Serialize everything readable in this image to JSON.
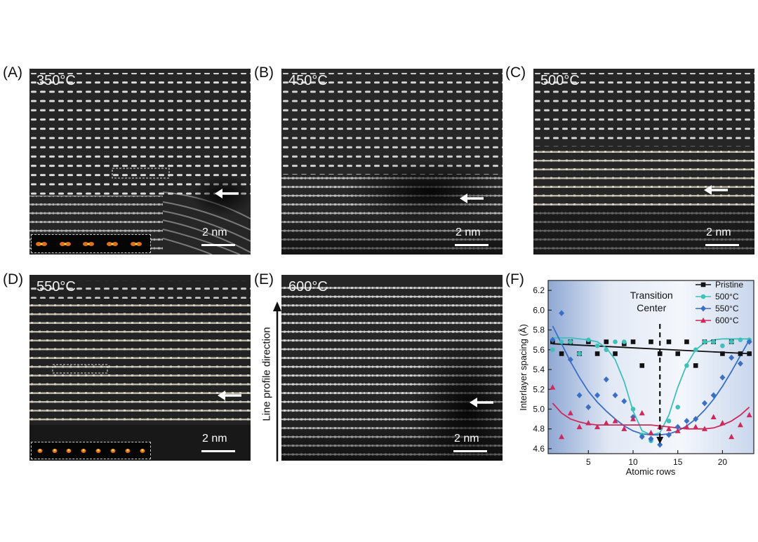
{
  "panels": [
    {
      "label": "(A)",
      "temperature": "350°C",
      "scale": "2 nm"
    },
    {
      "label": "(B)",
      "temperature": "450°C",
      "scale": "2 nm"
    },
    {
      "label": "(C)",
      "temperature": "500°C",
      "scale": "2 nm"
    },
    {
      "label": "(D)",
      "temperature": "550°C",
      "scale": "2 nm"
    },
    {
      "label": "(E)",
      "temperature": "600°C",
      "scale": "2 nm"
    },
    {
      "label": "(F)"
    }
  ],
  "line_profile_label": "Line profile direction",
  "chart_data": {
    "type": "scatter",
    "xlabel": "Atomic rows",
    "ylabel": "Interlayer spacing (Å)",
    "xlim": [
      0.5,
      23.5
    ],
    "ylim": [
      4.55,
      6.3
    ],
    "xticks": [
      5,
      10,
      15,
      20
    ],
    "yticks": [
      4.6,
      4.8,
      5.0,
      5.2,
      5.4,
      5.6,
      5.8,
      6.0,
      6.2
    ],
    "legend_position": "top-right",
    "annotation": {
      "line1": "Transition",
      "line2": "Center",
      "x": 13
    },
    "series": [
      {
        "name": "Pristine",
        "color": "#111111",
        "marker": "square",
        "x": [
          1,
          2,
          3,
          4,
          5,
          6,
          7,
          8,
          9,
          10,
          11,
          12,
          13,
          14,
          15,
          16,
          17,
          18,
          19,
          20,
          21,
          22,
          23
        ],
        "y": [
          5.68,
          5.56,
          5.68,
          5.56,
          5.68,
          5.56,
          5.68,
          5.56,
          5.66,
          5.68,
          5.44,
          5.68,
          5.56,
          5.68,
          5.56,
          5.68,
          5.44,
          5.68,
          5.68,
          5.56,
          5.68,
          5.56,
          5.56
        ],
        "fit_x": [
          1,
          23
        ],
        "fit_y": [
          5.66,
          5.56
        ]
      },
      {
        "name": "500°C",
        "color": "#3fc0b9",
        "marker": "circle",
        "x": [
          1,
          2,
          3,
          4,
          5,
          6,
          7,
          8,
          9,
          10,
          11,
          12,
          13,
          14,
          15,
          16,
          17,
          18,
          19,
          20,
          21,
          22,
          23
        ],
        "y": [
          5.6,
          5.68,
          5.68,
          5.56,
          5.7,
          5.64,
          5.6,
          5.68,
          5.68,
          5.0,
          4.74,
          4.68,
          4.7,
          4.88,
          5.02,
          5.44,
          5.6,
          5.68,
          5.68,
          5.64,
          5.68,
          5.7,
          5.7
        ],
        "fit_x": [
          1,
          2,
          3,
          4,
          5,
          6,
          7,
          8,
          9,
          10,
          11,
          12,
          13,
          14,
          15,
          16,
          17,
          18,
          19,
          20,
          21,
          22,
          23
        ],
        "fit_y": [
          5.72,
          5.72,
          5.72,
          5.71,
          5.7,
          5.68,
          5.62,
          5.5,
          5.28,
          4.98,
          4.78,
          4.74,
          4.76,
          4.94,
          5.22,
          5.45,
          5.6,
          5.67,
          5.7,
          5.71,
          5.71,
          5.71,
          5.71
        ]
      },
      {
        "name": "550°C",
        "color": "#3a6fc4",
        "marker": "diamond",
        "x": [
          1,
          2,
          3,
          4,
          5,
          6,
          7,
          8,
          9,
          10,
          11,
          12,
          13,
          14,
          15,
          16,
          17,
          18,
          19,
          20,
          21,
          22,
          23
        ],
        "y": [
          5.7,
          5.97,
          5.5,
          5.14,
          5.02,
          5.14,
          5.3,
          5.14,
          5.08,
          4.92,
          4.72,
          4.7,
          4.64,
          4.74,
          4.82,
          4.88,
          4.9,
          5.06,
          5.14,
          5.32,
          5.52,
          5.46,
          5.68
        ],
        "fit_x": [
          1,
          2,
          3,
          4,
          5,
          6,
          7,
          8,
          9,
          10,
          11,
          12,
          13,
          14,
          15,
          16,
          17,
          18,
          19,
          20,
          21,
          22,
          23
        ],
        "fit_y": [
          5.84,
          5.66,
          5.48,
          5.32,
          5.18,
          5.07,
          4.98,
          4.9,
          4.83,
          4.78,
          4.75,
          4.74,
          4.74,
          4.75,
          4.78,
          4.83,
          4.9,
          4.99,
          5.1,
          5.23,
          5.38,
          5.54,
          5.7
        ]
      },
      {
        "name": "600°C",
        "color": "#cc2a5a",
        "marker": "triangle",
        "x": [
          1,
          2,
          3,
          4,
          5,
          6,
          7,
          8,
          9,
          10,
          11,
          12,
          13,
          14,
          15,
          16,
          17,
          18,
          19,
          20,
          21,
          22,
          23
        ],
        "y": [
          5.22,
          4.72,
          4.96,
          4.82,
          4.86,
          4.82,
          4.86,
          4.88,
          4.8,
          4.9,
          4.96,
          4.76,
          4.82,
          4.8,
          4.78,
          4.82,
          4.82,
          4.8,
          4.92,
          4.86,
          4.72,
          4.84,
          4.94
        ],
        "fit_x": [
          1,
          2,
          3,
          4,
          5,
          6,
          7,
          8,
          9,
          10,
          11,
          12,
          13,
          14,
          15,
          16,
          17,
          18,
          19,
          20,
          21,
          22,
          23
        ],
        "fit_y": [
          5.06,
          4.96,
          4.9,
          4.87,
          4.85,
          4.84,
          4.84,
          4.84,
          4.84,
          4.84,
          4.84,
          4.84,
          4.83,
          4.82,
          4.81,
          4.8,
          4.8,
          4.8,
          4.81,
          4.84,
          4.88,
          4.94,
          5.02
        ]
      }
    ]
  }
}
